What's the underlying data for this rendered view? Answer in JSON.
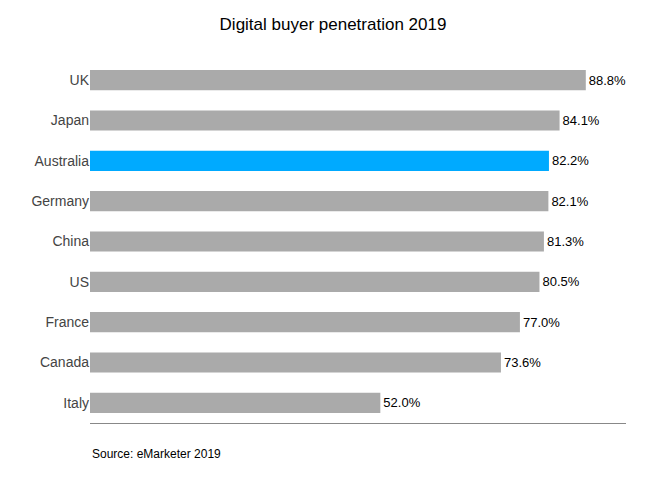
{
  "chart_data": {
    "type": "bar",
    "orientation": "horizontal",
    "title": "Digital buyer penetration 2019",
    "categories": [
      "UK",
      "Japan",
      "Australia",
      "Germany",
      "China",
      "US",
      "France",
      "Canada",
      "Italy"
    ],
    "values": [
      88.8,
      84.1,
      82.2,
      82.1,
      81.3,
      80.5,
      77.0,
      73.6,
      52.0
    ],
    "value_labels": [
      "88.8%",
      "84.1%",
      "82.2%",
      "82.1%",
      "81.3%",
      "80.5%",
      "77.0%",
      "73.6%",
      "52.0%"
    ],
    "data_labels": true,
    "colors": [
      "#aaaaaa",
      "#aaaaaa",
      "#00aaff",
      "#aaaaaa",
      "#aaaaaa",
      "#aaaaaa",
      "#aaaaaa",
      "#aaaaaa",
      "#aaaaaa"
    ],
    "xlim": [
      0,
      96
    ],
    "tick_labels": "y",
    "grid": false,
    "annotations": [
      "Source: eMarketer 2019"
    ]
  }
}
